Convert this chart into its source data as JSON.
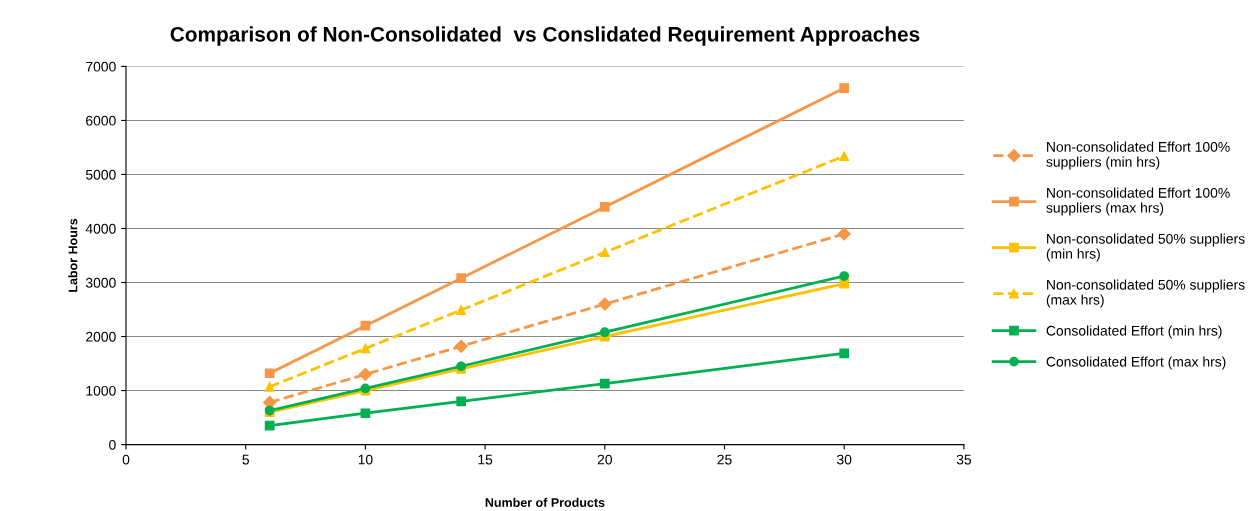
{
  "chart_data": {
    "type": "line",
    "title": "Comparison of Non-Consolidated  vs Conslidated Requirement Approaches",
    "xlabel": "Number of Products",
    "ylabel": "Labor Hours",
    "x": [
      6,
      10,
      14,
      20,
      30
    ],
    "series": [
      {
        "name": "Non-consolidated Effort 100%\nsuppliers (min hrs)",
        "color": "#f79646",
        "marker": "diamond",
        "line_style": "dashed",
        "values": [
          780,
          1300,
          1820,
          2600,
          3900
        ]
      },
      {
        "name": "Non-consolidated Effort 100%\nsuppliers (max hrs)",
        "color": "#f79646",
        "marker": "square",
        "line_style": "solid",
        "values": [
          1320,
          2200,
          3080,
          4400,
          6600
        ]
      },
      {
        "name": "Non-consolidated 50% suppliers\n(min hrs)",
        "color": "#ffc000",
        "marker": "square",
        "line_style": "solid",
        "values": [
          600,
          1000,
          1400,
          2000,
          2980
        ]
      },
      {
        "name": "Non-consolidated 50% suppliers\n(max hrs)",
        "color": "#ffc000",
        "marker": "triangle",
        "line_style": "dashed",
        "values": [
          1070,
          1780,
          2490,
          3560,
          5340
        ]
      },
      {
        "name": "Consolidated Effort (min hrs)",
        "color": "#00b050",
        "marker": "square",
        "line_style": "solid",
        "values": [
          350,
          580,
          800,
          1130,
          1690
        ]
      },
      {
        "name": "Consolidated Effort (max hrs)",
        "color": "#00b050",
        "marker": "circle",
        "line_style": "solid",
        "values": [
          630,
          1040,
          1450,
          2080,
          3120
        ]
      }
    ],
    "xlim": [
      0,
      35
    ],
    "xticks": [
      0,
      5,
      10,
      15,
      20,
      25,
      30,
      35
    ],
    "ylim": [
      0,
      7000
    ],
    "yticks": [
      0,
      1000,
      2000,
      3000,
      4000,
      5000,
      6000,
      7000
    ],
    "grid": "y",
    "legend": "right"
  }
}
